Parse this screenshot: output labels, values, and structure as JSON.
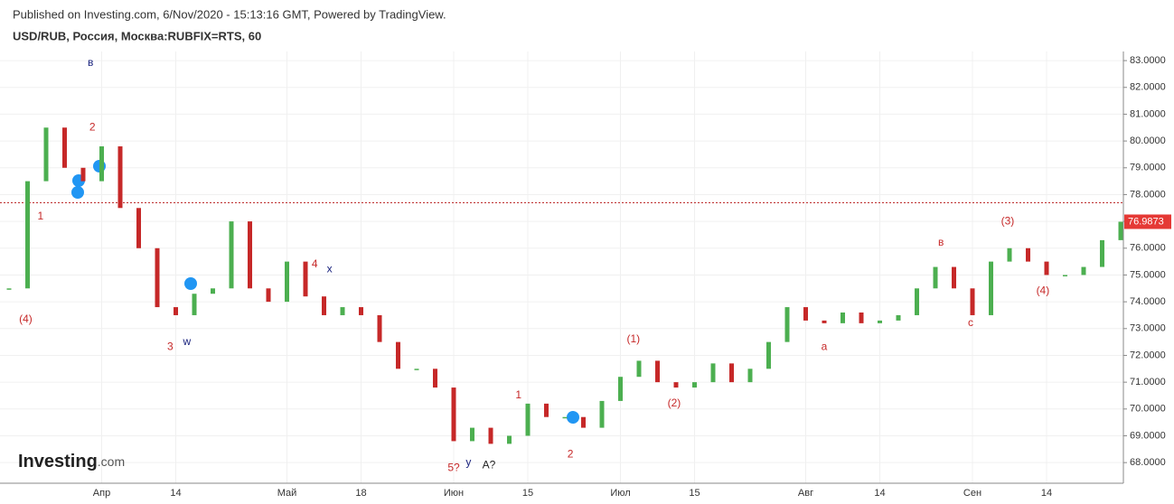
{
  "chart_data": {
    "type": "candles",
    "published": "Published on Investing.com, 6/Nov/2020 - 15:13:16 GMT, Powered by TradingView.",
    "title": "USD/RUB, Россия, Москва:RUBFIX=RTS, 60",
    "logo": "Investing",
    "logo_suffix": ".com",
    "categories": [
      null,
      null,
      null,
      null,
      null,
      "Апр",
      null,
      null,
      null,
      "14",
      null,
      null,
      null,
      null,
      null,
      "Май",
      null,
      null,
      null,
      "18",
      null,
      null,
      null,
      null,
      "Июн",
      null,
      null,
      null,
      "15",
      null,
      null,
      null,
      null,
      "Июл",
      null,
      null,
      null,
      "15",
      null,
      null,
      null,
      null,
      null,
      "Авг",
      null,
      null,
      null,
      "14",
      null,
      null,
      null,
      null,
      "Сен",
      null,
      null,
      null,
      "14",
      null,
      null,
      null,
      null
    ],
    "values": [
      74.5,
      78.5,
      80.5,
      79.0,
      78.5,
      79.8,
      77.5,
      76.0,
      73.8,
      73.5,
      74.3,
      74.5,
      77.0,
      74.5,
      74.0,
      75.5,
      74.2,
      73.5,
      73.8,
      73.5,
      72.5,
      71.5,
      71.5,
      70.8,
      68.8,
      69.3,
      68.7,
      69.0,
      70.2,
      69.7,
      69.7,
      69.3,
      70.3,
      71.2,
      71.8,
      71.0,
      70.8,
      71.0,
      71.7,
      71.0,
      71.5,
      72.5,
      73.8,
      73.3,
      73.2,
      73.6,
      73.2,
      73.3,
      73.5,
      74.5,
      75.3,
      74.5,
      73.5,
      75.5,
      76.0,
      75.5,
      75.0,
      75.0,
      75.3,
      76.3,
      76.9873
    ],
    "value_labels": {
      "60": "76.9873"
    },
    "up_color": "#4caf50",
    "down_color": "#c62828",
    "ref_line": 77.7,
    "ref_color": "#b71c1c",
    "ylim": [
      67.23,
      83.34
    ],
    "yticks": [
      {
        "value": 68,
        "label": "68.0000"
      },
      {
        "value": 69,
        "label": "69.0000"
      },
      {
        "value": 70,
        "label": "70.0000"
      },
      {
        "value": 71,
        "label": "71.0000"
      },
      {
        "value": 72,
        "label": "72.0000"
      },
      {
        "value": 73,
        "label": "73.0000"
      },
      {
        "value": 74,
        "label": "74.0000"
      },
      {
        "value": 75,
        "label": "75.0000"
      },
      {
        "value": 76,
        "label": "76.0000"
      },
      {
        "value": 77,
        "label": "77.0000"
      },
      {
        "value": 78,
        "label": "78.0000"
      },
      {
        "value": 79,
        "label": "79.0000"
      },
      {
        "value": 80,
        "label": "80.0000"
      },
      {
        "value": 81,
        "label": "81.0000"
      },
      {
        "value": 82,
        "label": "82.0000"
      },
      {
        "value": 83,
        "label": "83.0000"
      }
    ],
    "grid": true,
    "annotations": [
      {
        "text": "(4)",
        "x": 0.9,
        "y": 73.33,
        "color": "#c62828"
      },
      {
        "text": "1",
        "x": 1.7,
        "y": 77.17,
        "color": "#c62828"
      },
      {
        "text": "в",
        "x": 4.4,
        "y": 82.9,
        "color": "#1a237e"
      },
      {
        "text": "2",
        "x": 4.5,
        "y": 80.5,
        "color": "#c62828"
      },
      {
        "text": "3",
        "x": 8.7,
        "y": 72.3,
        "color": "#c62828"
      },
      {
        "text": "w",
        "x": 9.6,
        "y": 72.5,
        "color": "#1a237e"
      },
      {
        "text": "4",
        "x": 16.5,
        "y": 75.4,
        "color": "#c62828"
      },
      {
        "text": "x",
        "x": 17.3,
        "y": 75.2,
        "color": "#1a237e"
      },
      {
        "text": "5?",
        "x": 24,
        "y": 67.8,
        "color": "#c62828"
      },
      {
        "text": "у",
        "x": 24.8,
        "y": 68.0,
        "color": "#1a237e"
      },
      {
        "text": "A?",
        "x": 25.9,
        "y": 67.9,
        "color": "#222222"
      },
      {
        "text": "1",
        "x": 27.5,
        "y": 70.5,
        "color": "#c62828"
      },
      {
        "text": "2",
        "x": 30.3,
        "y": 68.3,
        "color": "#c62828"
      },
      {
        "text": "(1)",
        "x": 33.7,
        "y": 72.6,
        "color": "#c62828"
      },
      {
        "text": "(2)",
        "x": 35.9,
        "y": 70.2,
        "color": "#c62828"
      },
      {
        "text": "a",
        "x": 44,
        "y": 72.3,
        "color": "#c62828"
      },
      {
        "text": "в",
        "x": 50.3,
        "y": 76.2,
        "color": "#c62828"
      },
      {
        "text": "c",
        "x": 51.9,
        "y": 73.2,
        "color": "#c62828"
      },
      {
        "text": "(3)",
        "x": 53.9,
        "y": 77.0,
        "color": "#c62828"
      },
      {
        "text": "(4)",
        "x": 55.8,
        "y": 74.4,
        "color": "#c62828"
      }
    ]
  }
}
